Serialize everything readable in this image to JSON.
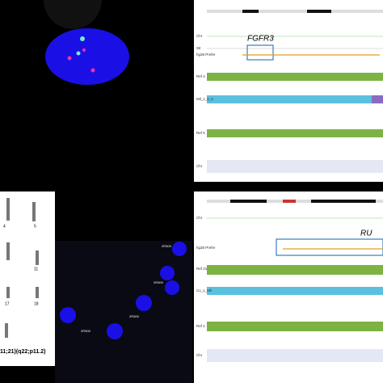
{
  "browser_top": {
    "gene": "FGFR3",
    "tracks": [
      "Chr",
      "Str",
      "hg38 Prefer",
      "Ref 4",
      "Mil_1_0_5",
      "Ref 5",
      "Chr"
    ]
  },
  "browser_bottom": {
    "gene": "RU",
    "tracks": [
      "Chr",
      "hg38 Prefer",
      "Ref 21",
      "Cu_1_Mil",
      "Ref 1",
      "Chr"
    ]
  },
  "karyotype": {
    "chromosomes": [
      "4",
      "5",
      "11",
      "17",
      "18"
    ],
    "caption": "11;21)(q22;p11.2)"
  },
  "fish": {
    "labels": [
      "2R300",
      "2R300",
      "2R300",
      "2R300"
    ]
  }
}
